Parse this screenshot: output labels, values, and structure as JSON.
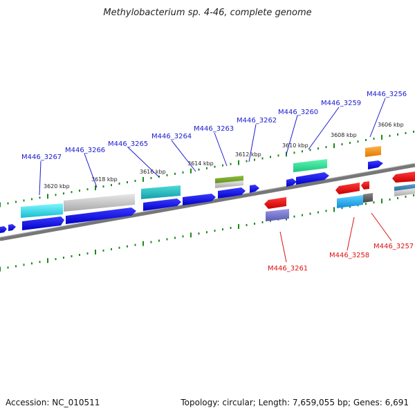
{
  "header": {
    "title": "Methylobacterium sp. 4-46, complete genome"
  },
  "footer": {
    "accession": "Accession: NC_010511",
    "summary": "Topology: circular; Length: 7,659,055 bp; Genes: 6,691"
  },
  "ruler": {
    "ticks": [
      {
        "label": "3620 kbp"
      },
      {
        "label": "3618 kbp"
      },
      {
        "label": "3616 kbp"
      },
      {
        "label": "3614 kbp"
      },
      {
        "label": "3612 kbp"
      },
      {
        "label": "3610 kbp"
      },
      {
        "label": "3608 kbp"
      },
      {
        "label": "3606 kbp"
      }
    ]
  },
  "genes_forward": [
    {
      "label": "M446_3267",
      "color": "#1f1fd0"
    },
    {
      "label": "M446_3266",
      "color": "#1f1fd0"
    },
    {
      "label": "M446_3265",
      "color": "#1f1fd0"
    },
    {
      "label": "M446_3264",
      "color": "#1f1fd0"
    },
    {
      "label": "M446_3263",
      "color": "#1f1fd0"
    },
    {
      "label": "M446_3262",
      "color": "#1f1fd0"
    },
    {
      "label": "M446_3260",
      "color": "#1f1fd0"
    },
    {
      "label": "M446_3259",
      "color": "#1f1fd0"
    },
    {
      "label": "M446_3256",
      "color": "#1f1fd0"
    }
  ],
  "genes_reverse": [
    {
      "label": "M446_3261",
      "color": "#dd1111"
    },
    {
      "label": "M446_3258",
      "color": "#dd1111"
    },
    {
      "label": "M446_3257",
      "color": "#dd1111"
    }
  ],
  "colors": {
    "forward_cds": "#1010ee",
    "reverse_cds": "#ee1111",
    "backbone": "#888888",
    "tick": "#1a8a1a"
  }
}
